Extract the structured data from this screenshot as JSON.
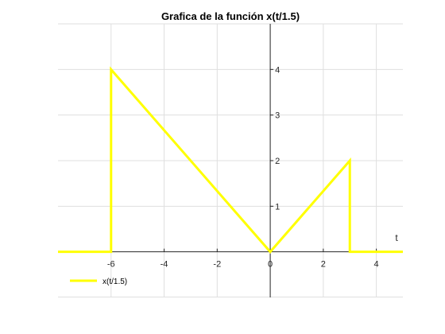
{
  "chart_data": {
    "type": "line",
    "title": "Grafica de la función x(t/1.5)",
    "xlabel": "t",
    "ylabel": "",
    "xlim": [
      -8,
      5
    ],
    "ylim": [
      -1,
      5
    ],
    "x_ticks": [
      -6,
      -4,
      -2,
      0,
      2,
      4
    ],
    "x_tick_labels": [
      "-6",
      "-4",
      "-2",
      "0",
      "2",
      "4"
    ],
    "y_ticks": [
      1,
      2,
      3,
      4
    ],
    "y_tick_labels": [
      "1",
      "2",
      "3",
      "4"
    ],
    "grid": true,
    "axes_through_origin": true,
    "legend_position": "bottom-left",
    "series": [
      {
        "name": "x(t/1.5)",
        "color": "#ffff00",
        "x": [
          -8,
          -6,
          -6,
          0,
          3,
          3,
          5
        ],
        "y": [
          0,
          0,
          4,
          0,
          2,
          0,
          0
        ]
      }
    ]
  }
}
